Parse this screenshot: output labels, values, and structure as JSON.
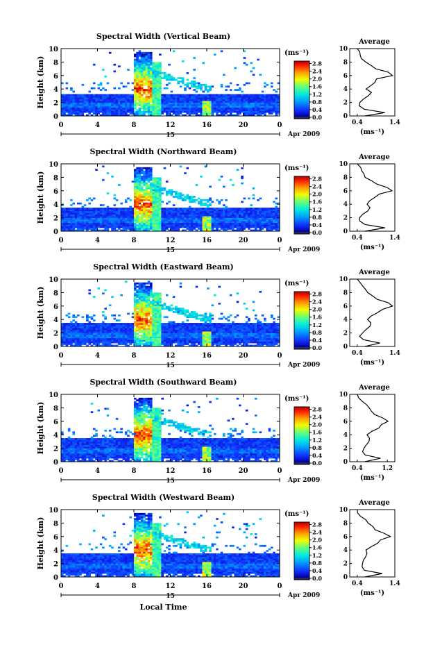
{
  "figure": {
    "common": {
      "ylabel": "Height (km)",
      "x_ticks": [
        "0",
        "4",
        "8",
        "12",
        "16",
        "20",
        "0"
      ],
      "y_ticks": [
        "0",
        "2",
        "4",
        "6",
        "8",
        "10"
      ],
      "date_day": "15",
      "date_suffix": "Apr 2009",
      "colorbar_unit": "(ms⁻¹)",
      "colorbar_ticks": [
        "0.0",
        "0.4",
        "0.8",
        "1.2",
        "1.6",
        "2.0",
        "2.4",
        "2.8"
      ],
      "avg_title": "Average",
      "avg_unit": "(ms⁻¹)",
      "xlabel": "Local Time"
    },
    "panels": [
      {
        "title": "Spectral Width (Vertical Beam)"
      },
      {
        "title": "Spectral Width (Northward Beam)"
      },
      {
        "title": "Spectral Width (Eastward Beam)"
      },
      {
        "title": "Spectral Width (Southward Beam)"
      },
      {
        "title": "Spectral Width (Westward Beam)"
      }
    ]
  },
  "chart_data": [
    {
      "type": "heatmap",
      "title": "Spectral Width (Vertical Beam)",
      "xlabel": "",
      "ylabel": "Height (km)",
      "xlim": [
        0,
        24
      ],
      "ylim": [
        0,
        10
      ],
      "colorbar": {
        "unit": "(ms⁻¹)",
        "range": [
          0.0,
          3.0
        ],
        "ticks": [
          "0.0",
          "0.4",
          "0.8",
          "1.2",
          "1.6",
          "2.0",
          "2.4",
          "2.8"
        ]
      },
      "features": {
        "low_layer_top_km": 3.3,
        "convective_cell_hours": [
          8.0,
          10.0
        ],
        "convective_peak_height_km": 4.0,
        "secondary_cell_hour": 16.0
      },
      "average_profile": {
        "title": "Average",
        "xlim": [
          0.2,
          1.4
        ],
        "x_ticks": [
          "0.4",
          "1.4"
        ],
        "height_km": [
          0,
          0.5,
          1,
          1.5,
          2,
          2.5,
          3,
          3.5,
          4,
          4.5,
          5,
          5.5,
          6,
          6.5,
          7,
          7.5,
          8,
          8.5,
          9,
          9.5,
          10
        ],
        "width_ms": [
          0.6,
          1.1,
          0.55,
          0.45,
          0.5,
          0.6,
          0.7,
          0.75,
          0.6,
          0.75,
          0.9,
          0.95,
          1.35,
          1.2,
          0.85,
          0.75,
          0.65,
          0.55,
          0.5,
          0.45,
          0.4
        ]
      }
    },
    {
      "type": "heatmap",
      "title": "Spectral Width (Northward Beam)",
      "xlabel": "",
      "ylabel": "Height (km)",
      "xlim": [
        0,
        24
      ],
      "ylim": [
        0,
        10
      ],
      "colorbar": {
        "unit": "(ms⁻¹)",
        "range": [
          0.0,
          3.0
        ],
        "ticks": [
          "0.0",
          "0.4",
          "0.8",
          "1.2",
          "1.6",
          "2.0",
          "2.4",
          "2.8"
        ]
      },
      "features": {
        "low_layer_top_km": 3.5,
        "convective_cell_hours": [
          8.0,
          10.0
        ],
        "convective_peak_height_km": 4.0,
        "secondary_cell_hour": 16.0
      },
      "average_profile": {
        "title": "Average",
        "xlim": [
          0.2,
          1.4
        ],
        "x_ticks": [
          "0.4",
          "1.4"
        ],
        "height_km": [
          0,
          0.5,
          1,
          1.5,
          2,
          2.5,
          3,
          3.5,
          4,
          4.5,
          5,
          5.5,
          6,
          6.5,
          7,
          7.5,
          8,
          8.5,
          9,
          9.5,
          10
        ],
        "width_ms": [
          0.6,
          1.1,
          0.6,
          0.5,
          0.5,
          0.55,
          0.65,
          0.7,
          0.65,
          0.75,
          0.9,
          1.0,
          1.3,
          1.15,
          0.9,
          0.8,
          0.65,
          0.6,
          0.5,
          0.45,
          0.4
        ]
      }
    },
    {
      "type": "heatmap",
      "title": "Spectral Width (Eastward Beam)",
      "xlabel": "",
      "ylabel": "Height (km)",
      "xlim": [
        0,
        24
      ],
      "ylim": [
        0,
        10
      ],
      "colorbar": {
        "unit": "(ms⁻¹)",
        "range": [
          0.0,
          3.0
        ],
        "ticks": [
          "0.0",
          "0.4",
          "0.8",
          "1.2",
          "1.6",
          "2.0",
          "2.4",
          "2.8"
        ]
      },
      "features": {
        "low_layer_top_km": 3.4,
        "convective_cell_hours": [
          8.0,
          10.0
        ],
        "convective_peak_height_km": 4.0,
        "secondary_cell_hour": 16.0
      },
      "average_profile": {
        "title": "Average",
        "xlim": [
          0.2,
          1.4
        ],
        "x_ticks": [
          "0.4",
          "1.4"
        ],
        "height_km": [
          0,
          0.5,
          1,
          1.5,
          2,
          2.5,
          3,
          3.5,
          4,
          4.5,
          5,
          5.5,
          6,
          6.5,
          7,
          7.5,
          8,
          8.5,
          9,
          9.5,
          10
        ],
        "width_ms": [
          0.6,
          1.0,
          0.6,
          0.5,
          0.55,
          0.6,
          0.7,
          0.75,
          0.7,
          0.8,
          0.95,
          1.05,
          1.3,
          1.2,
          0.95,
          0.85,
          0.7,
          0.6,
          0.5,
          0.45,
          0.4
        ]
      }
    },
    {
      "type": "heatmap",
      "title": "Spectral Width (Southward Beam)",
      "xlabel": "",
      "ylabel": "Height (km)",
      "xlim": [
        0,
        24
      ],
      "ylim": [
        0,
        10
      ],
      "colorbar": {
        "unit": "(ms⁻¹)",
        "range": [
          0.0,
          3.0
        ],
        "ticks": [
          "0.0",
          "0.4",
          "0.8",
          "1.2",
          "1.6",
          "2.0",
          "2.4",
          "2.8"
        ]
      },
      "features": {
        "low_layer_top_km": 3.5,
        "convective_cell_hours": [
          8.0,
          10.0
        ],
        "convective_peak_height_km": 4.0,
        "secondary_cell_hour": 16.0
      },
      "average_profile": {
        "title": "Average",
        "xlim": [
          0.2,
          1.4
        ],
        "x_ticks": [
          "0.4",
          "1.2"
        ],
        "height_km": [
          0,
          0.5,
          1,
          1.5,
          2,
          2.5,
          3,
          3.5,
          4,
          4.5,
          5,
          5.5,
          6,
          6.5,
          7,
          7.5,
          8,
          8.5,
          9,
          9.5,
          10
        ],
        "width_ms": [
          0.6,
          1.05,
          0.65,
          0.55,
          0.55,
          0.6,
          0.7,
          0.75,
          0.7,
          0.8,
          0.95,
          1.0,
          1.2,
          1.1,
          0.9,
          0.8,
          0.7,
          0.6,
          0.5,
          0.45,
          0.4
        ]
      }
    },
    {
      "type": "heatmap",
      "title": "Spectral Width (Westward Beam)",
      "xlabel": "Local Time",
      "ylabel": "Height (km)",
      "xlim": [
        0,
        24
      ],
      "ylim": [
        0,
        10
      ],
      "colorbar": {
        "unit": "(ms⁻¹)",
        "range": [
          0.0,
          3.0
        ],
        "ticks": [
          "0.0",
          "0.4",
          "0.8",
          "1.2",
          "1.6",
          "2.0",
          "2.4",
          "2.8"
        ]
      },
      "features": {
        "low_layer_top_km": 3.4,
        "convective_cell_hours": [
          8.0,
          10.0
        ],
        "convective_peak_height_km": 4.0,
        "secondary_cell_hour": 16.0
      },
      "average_profile": {
        "title": "Average",
        "xlim": [
          0.2,
          1.4
        ],
        "x_ticks": [
          "0.4",
          "1.4"
        ],
        "height_km": [
          0,
          0.5,
          1,
          1.5,
          2,
          2.5,
          3,
          3.5,
          4,
          4.5,
          5,
          5.5,
          6,
          6.5,
          7,
          7.5,
          8,
          8.5,
          9,
          9.5,
          10
        ],
        "width_ms": [
          0.6,
          1.1,
          0.6,
          0.5,
          0.5,
          0.55,
          0.65,
          0.7,
          0.65,
          0.75,
          0.9,
          1.0,
          1.3,
          1.15,
          0.9,
          0.8,
          0.65,
          0.6,
          0.5,
          0.45,
          0.4
        ]
      }
    }
  ]
}
